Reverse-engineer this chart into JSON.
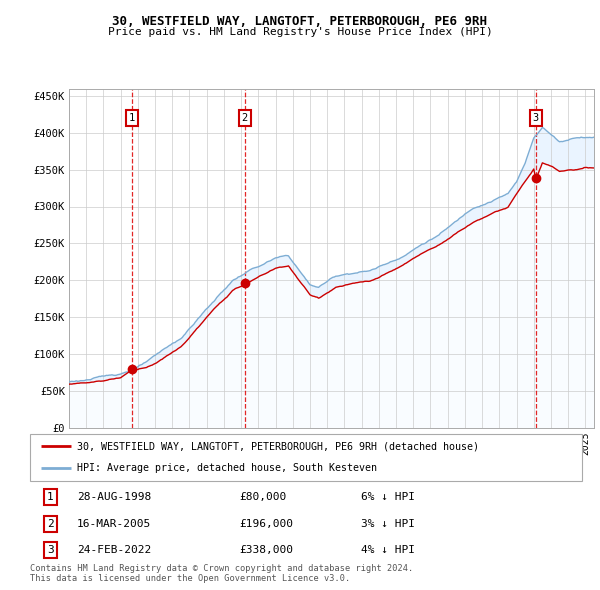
{
  "title": "30, WESTFIELD WAY, LANGTOFT, PETERBOROUGH, PE6 9RH",
  "subtitle": "Price paid vs. HM Land Registry's House Price Index (HPI)",
  "ylim": [
    0,
    460000
  ],
  "yticks": [
    0,
    50000,
    100000,
    150000,
    200000,
    250000,
    300000,
    350000,
    400000,
    450000
  ],
  "ytick_labels": [
    "£0",
    "£50K",
    "£100K",
    "£150K",
    "£200K",
    "£250K",
    "£300K",
    "£350K",
    "£400K",
    "£450K"
  ],
  "transactions": [
    {
      "label": "1",
      "date_num": 1998.667,
      "price": 80000,
      "date_str": "28-AUG-1998",
      "price_str": "£80,000",
      "note": "6% ↓ HPI"
    },
    {
      "label": "2",
      "date_num": 2005.208,
      "price": 196000,
      "date_str": "16-MAR-2005",
      "price_str": "£196,000",
      "note": "3% ↓ HPI"
    },
    {
      "label": "3",
      "date_num": 2022.125,
      "price": 338000,
      "date_str": "24-FEB-2022",
      "price_str": "£338,000",
      "note": "4% ↓ HPI"
    }
  ],
  "legend_line1": "30, WESTFIELD WAY, LANGTOFT, PETERBOROUGH, PE6 9RH (detached house)",
  "legend_line2": "HPI: Average price, detached house, South Kesteven",
  "footnote1": "Contains HM Land Registry data © Crown copyright and database right 2024.",
  "footnote2": "This data is licensed under the Open Government Licence v3.0.",
  "price_line_color": "#cc0000",
  "hpi_line_color": "#7dadd4",
  "hpi_fill_color": "#ddeeff",
  "background_color": "#ffffff",
  "grid_color": "#cccccc",
  "transaction_box_color": "#cc0000",
  "xlim_start": 1995.0,
  "xlim_end": 2025.5,
  "hpi_segments": [
    [
      1995.0,
      62000
    ],
    [
      1996.0,
      65000
    ],
    [
      1997.0,
      68000
    ],
    [
      1998.0,
      73000
    ],
    [
      1999.0,
      82000
    ],
    [
      2000.0,
      95000
    ],
    [
      2001.5,
      118000
    ],
    [
      2003.0,
      158000
    ],
    [
      2004.5,
      196000
    ],
    [
      2005.5,
      210000
    ],
    [
      2007.0,
      225000
    ],
    [
      2007.75,
      228000
    ],
    [
      2009.0,
      188000
    ],
    [
      2009.5,
      185000
    ],
    [
      2010.5,
      200000
    ],
    [
      2011.5,
      205000
    ],
    [
      2012.5,
      208000
    ],
    [
      2013.5,
      218000
    ],
    [
      2014.5,
      230000
    ],
    [
      2015.5,
      245000
    ],
    [
      2016.5,
      258000
    ],
    [
      2017.5,
      275000
    ],
    [
      2018.5,
      295000
    ],
    [
      2019.5,
      305000
    ],
    [
      2020.5,
      315000
    ],
    [
      2021.0,
      330000
    ],
    [
      2021.5,
      355000
    ],
    [
      2022.0,
      390000
    ],
    [
      2022.5,
      405000
    ],
    [
      2023.0,
      395000
    ],
    [
      2023.5,
      385000
    ],
    [
      2024.0,
      388000
    ],
    [
      2024.5,
      392000
    ],
    [
      2025.0,
      393000
    ]
  ],
  "price_segments": [
    [
      1995.0,
      59000
    ],
    [
      1996.0,
      62000
    ],
    [
      1997.0,
      65000
    ],
    [
      1998.0,
      70000
    ],
    [
      1998.667,
      80000
    ],
    [
      1999.5,
      85000
    ],
    [
      2000.0,
      90000
    ],
    [
      2001.5,
      112000
    ],
    [
      2003.0,
      152000
    ],
    [
      2004.5,
      188000
    ],
    [
      2005.208,
      196000
    ],
    [
      2005.5,
      200000
    ],
    [
      2007.0,
      218000
    ],
    [
      2007.75,
      222000
    ],
    [
      2009.0,
      182000
    ],
    [
      2009.5,
      178000
    ],
    [
      2010.5,
      193000
    ],
    [
      2011.5,
      198000
    ],
    [
      2012.5,
      200000
    ],
    [
      2013.5,
      210000
    ],
    [
      2014.5,
      222000
    ],
    [
      2015.5,
      236000
    ],
    [
      2016.5,
      248000
    ],
    [
      2017.5,
      265000
    ],
    [
      2018.5,
      280000
    ],
    [
      2019.5,
      292000
    ],
    [
      2020.5,
      300000
    ],
    [
      2021.0,
      318000
    ],
    [
      2021.5,
      335000
    ],
    [
      2022.0,
      352000
    ],
    [
      2022.125,
      338000
    ],
    [
      2022.5,
      360000
    ],
    [
      2023.0,
      355000
    ],
    [
      2023.5,
      348000
    ],
    [
      2024.0,
      350000
    ],
    [
      2024.5,
      350000
    ],
    [
      2025.0,
      352000
    ]
  ]
}
